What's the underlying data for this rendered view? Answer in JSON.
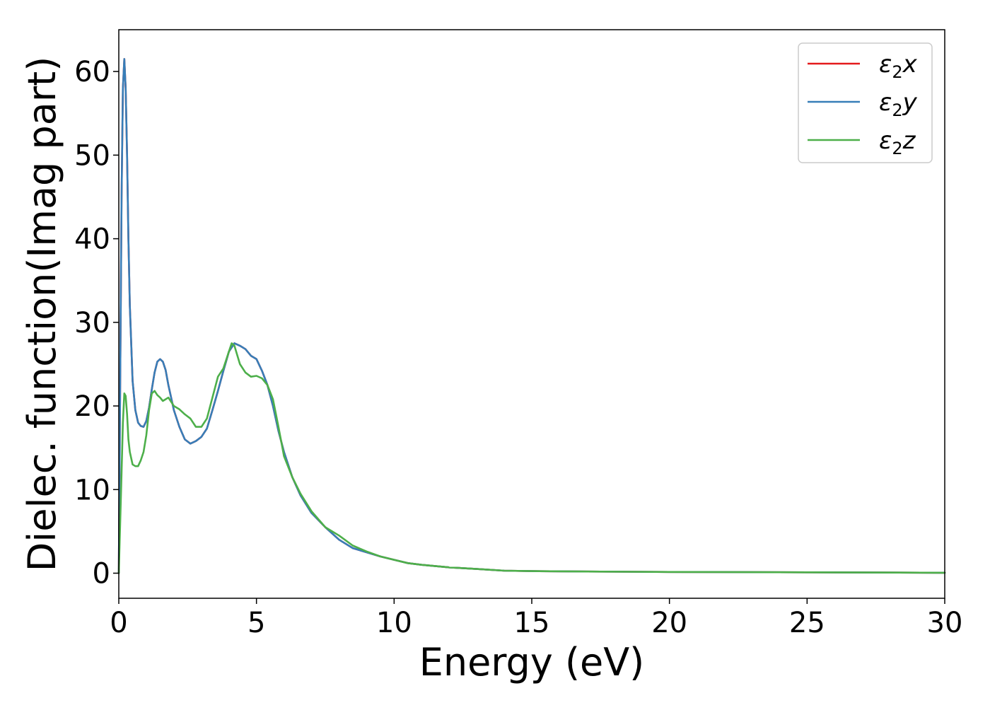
{
  "chart_data": {
    "type": "line",
    "xlabel": "Energy (eV)",
    "ylabel": "Dielec. function(Imag part)",
    "xlim": [
      0,
      30
    ],
    "ylim": [
      -3,
      65
    ],
    "xticks": [
      0,
      5,
      10,
      15,
      20,
      25,
      30
    ],
    "yticks": [
      0,
      10,
      20,
      30,
      40,
      50,
      60
    ],
    "grid": false,
    "legend_position": "top-right",
    "series": [
      {
        "name": "ε2x",
        "legend_main": "ε",
        "legend_sub": "2",
        "legend_suffix": "x",
        "color": "#e41a1c",
        "x": [
          0,
          0.05,
          0.1,
          0.15,
          0.2,
          0.25,
          0.3,
          0.35,
          0.4,
          0.5,
          0.6,
          0.7,
          0.8,
          0.9,
          1.0,
          1.1,
          1.2,
          1.3,
          1.4,
          1.5,
          1.6,
          1.7,
          1.8,
          1.9,
          2.0,
          2.2,
          2.4,
          2.6,
          2.8,
          3.0,
          3.2,
          3.4,
          3.6,
          3.8,
          4.0,
          4.2,
          4.4,
          4.6,
          4.8,
          5.0,
          5.2,
          5.4,
          5.6,
          5.8,
          6.0,
          6.3,
          6.6,
          7.0,
          7.5,
          8.0,
          8.5,
          9.0,
          9.5,
          10.0,
          10.5,
          11.0,
          12.0,
          13.0,
          14.0,
          15.0,
          17.0,
          20.0,
          25.0,
          30.0
        ],
        "y": [
          0,
          22,
          45,
          58,
          61.5,
          58,
          50,
          40,
          32,
          23,
          19.5,
          18,
          17.6,
          17.5,
          18.2,
          19.8,
          22,
          24,
          25.3,
          25.6,
          25.3,
          24.3,
          22.5,
          21,
          19.5,
          17.5,
          16,
          15.5,
          15.8,
          16.3,
          17.3,
          19.5,
          21.8,
          24.2,
          26.5,
          27.5,
          27.2,
          26.8,
          26,
          25.6,
          24.2,
          22.5,
          20,
          17,
          14.5,
          11.5,
          9.3,
          7.2,
          5.5,
          4.0,
          3.0,
          2.5,
          2.0,
          1.6,
          1.2,
          1.0,
          0.7,
          0.5,
          0.3,
          0.25,
          0.2,
          0.15,
          0.1,
          0.05
        ]
      },
      {
        "name": "ε2y",
        "legend_main": "ε",
        "legend_sub": "2",
        "legend_suffix": "y",
        "color": "#377eb8",
        "x": [
          0,
          0.05,
          0.1,
          0.15,
          0.2,
          0.25,
          0.3,
          0.35,
          0.4,
          0.5,
          0.6,
          0.7,
          0.8,
          0.9,
          1.0,
          1.1,
          1.2,
          1.3,
          1.4,
          1.5,
          1.6,
          1.7,
          1.8,
          1.9,
          2.0,
          2.2,
          2.4,
          2.6,
          2.8,
          3.0,
          3.2,
          3.4,
          3.6,
          3.8,
          4.0,
          4.2,
          4.4,
          4.6,
          4.8,
          5.0,
          5.2,
          5.4,
          5.6,
          5.8,
          6.0,
          6.3,
          6.6,
          7.0,
          7.5,
          8.0,
          8.5,
          9.0,
          9.5,
          10.0,
          10.5,
          11.0,
          12.0,
          13.0,
          14.0,
          15.0,
          17.0,
          20.0,
          25.0,
          30.0
        ],
        "y": [
          0,
          22,
          45,
          58,
          61.5,
          58,
          50,
          40,
          32,
          23,
          19.5,
          18,
          17.6,
          17.5,
          18.2,
          19.8,
          22,
          24,
          25.3,
          25.6,
          25.3,
          24.3,
          22.5,
          21,
          19.5,
          17.5,
          16,
          15.5,
          15.8,
          16.3,
          17.3,
          19.5,
          21.8,
          24.2,
          26.5,
          27.5,
          27.2,
          26.8,
          26,
          25.6,
          24.2,
          22.5,
          20,
          17,
          14.5,
          11.5,
          9.3,
          7.2,
          5.5,
          4.0,
          3.0,
          2.5,
          2.0,
          1.6,
          1.2,
          1.0,
          0.7,
          0.5,
          0.3,
          0.25,
          0.2,
          0.15,
          0.1,
          0.05
        ]
      },
      {
        "name": "ε2z",
        "legend_main": "ε",
        "legend_sub": "2",
        "legend_suffix": "z",
        "color": "#4daf4a",
        "x": [
          0,
          0.1,
          0.15,
          0.2,
          0.25,
          0.3,
          0.35,
          0.4,
          0.5,
          0.6,
          0.7,
          0.8,
          0.9,
          1.0,
          1.1,
          1.2,
          1.3,
          1.4,
          1.5,
          1.6,
          1.7,
          1.8,
          1.9,
          2.0,
          2.2,
          2.4,
          2.6,
          2.8,
          3.0,
          3.2,
          3.4,
          3.6,
          3.8,
          4.0,
          4.1,
          4.2,
          4.4,
          4.6,
          4.8,
          5.0,
          5.2,
          5.4,
          5.6,
          5.8,
          6.0,
          6.3,
          6.6,
          7.0,
          7.5,
          8.0,
          8.5,
          9.0,
          9.5,
          10.0,
          10.5,
          11.0,
          12.0,
          13.0,
          14.0,
          15.0,
          17.0,
          20.0,
          25.0,
          30.0
        ],
        "y": [
          0,
          12,
          18,
          21.5,
          21.2,
          19,
          16,
          14.5,
          13,
          12.8,
          12.8,
          13.5,
          14.5,
          16.5,
          19.5,
          21.5,
          21.8,
          21.3,
          21,
          20.6,
          20.8,
          21,
          20.5,
          20,
          19.6,
          19,
          18.5,
          17.5,
          17.5,
          18.5,
          21,
          23.5,
          24.5,
          26.5,
          27.5,
          27.2,
          25,
          24,
          23.5,
          23.6,
          23.3,
          22.5,
          20.8,
          17.5,
          14,
          11.5,
          9.5,
          7.4,
          5.5,
          4.5,
          3.3,
          2.6,
          2.0,
          1.6,
          1.2,
          1.0,
          0.7,
          0.5,
          0.3,
          0.25,
          0.2,
          0.15,
          0.1,
          0.05
        ]
      }
    ]
  }
}
